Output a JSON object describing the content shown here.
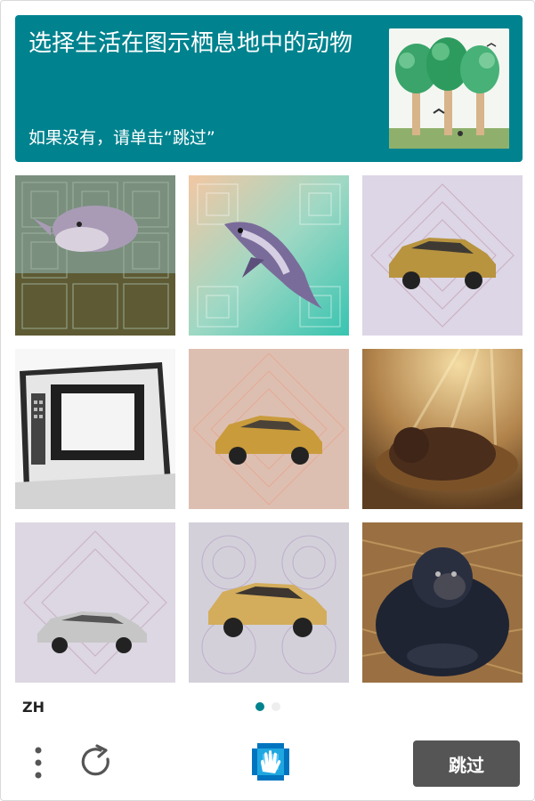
{
  "header": {
    "prompt": "选择生活在图示栖息地中的动物",
    "hint": "如果没有，请单击“跳过”"
  },
  "example_image": {
    "icon": "forest-habitat-example-image"
  },
  "tiles": [
    {
      "subject": "dolphin"
    },
    {
      "subject": "dolphin"
    },
    {
      "subject": "car"
    },
    {
      "subject": "microwave"
    },
    {
      "subject": "car"
    },
    {
      "subject": "animal-in-nest"
    },
    {
      "subject": "car"
    },
    {
      "subject": "car"
    },
    {
      "subject": "gorilla"
    }
  ],
  "footer": {
    "language": "ZH",
    "page_indicator": {
      "current": 1,
      "total": 2
    },
    "skip_label": "跳过"
  },
  "colors": {
    "accent": "#00838f",
    "skip_button": "#555555",
    "dot_active": "#00838f",
    "dot_inactive": "#eeeeee"
  }
}
